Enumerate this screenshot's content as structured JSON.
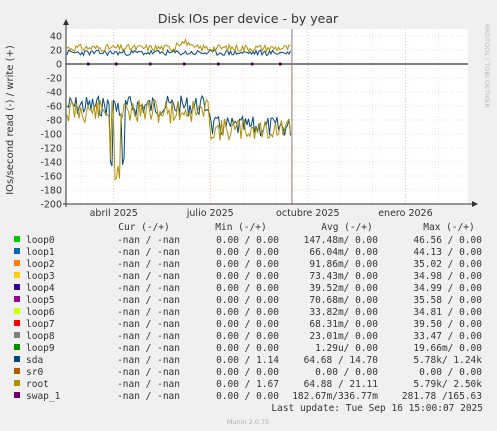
{
  "chart_data": {
    "type": "line",
    "title": "Disk IOs per device - by year",
    "ylabel": "IOs/second read (-) / write (+)",
    "ylim": [
      -200,
      50
    ],
    "yticks": [
      40,
      20,
      0,
      -20,
      -40,
      -60,
      -80,
      -100,
      -120,
      -140,
      -160,
      -180,
      -200
    ],
    "xlim": [
      "2025-02-15",
      "2026-03-01"
    ],
    "xticks": [
      {
        "label": "abril 2025",
        "date": "2025-04-01"
      },
      {
        "label": "julio 2025",
        "date": "2025-07-01"
      },
      {
        "label": "octubre 2025",
        "date": "2025-10-01"
      },
      {
        "label": "enero 2026",
        "date": "2026-01-01"
      }
    ],
    "now_marker": "2025-09-16",
    "grid": true,
    "series": [
      {
        "name": "loop0",
        "color": "#00cc00",
        "cur": "-nan /  -nan",
        "min": "0.00 /  0.00",
        "avg": "147.48m/  0.00",
        "max": "46.56 /  0.00"
      },
      {
        "name": "loop1",
        "color": "#0066b3",
        "cur": "-nan /  -nan",
        "min": "0.00 /  0.00",
        "avg": "66.04m/  0.00",
        "max": "44.13 /  0.00"
      },
      {
        "name": "loop2",
        "color": "#ff8000",
        "cur": "-nan /  -nan",
        "min": "0.00 /  0.00",
        "avg": "91.86m/  0.00",
        "max": "35.02 /  0.00"
      },
      {
        "name": "loop3",
        "color": "#ffcc00",
        "cur": "-nan /  -nan",
        "min": "0.00 /  0.00",
        "avg": "73.43m/  0.00",
        "max": "34.98 /  0.00"
      },
      {
        "name": "loop4",
        "color": "#330099",
        "cur": "-nan /  -nan",
        "min": "0.00 /  0.00",
        "avg": "39.52m/  0.00",
        "max": "34.99 /  0.00"
      },
      {
        "name": "loop5",
        "color": "#990099",
        "cur": "-nan /  -nan",
        "min": "0.00 /  0.00",
        "avg": "70.68m/  0.00",
        "max": "35.58 /  0.00"
      },
      {
        "name": "loop6",
        "color": "#ccff00",
        "cur": "-nan /  -nan",
        "min": "0.00 /  0.00",
        "avg": "33.82m/  0.00",
        "max": "34.81 /  0.00"
      },
      {
        "name": "loop7",
        "color": "#ff0000",
        "cur": "-nan /  -nan",
        "min": "0.00 /  0.00",
        "avg": "68.31m/  0.00",
        "max": "39.50 /  0.00"
      },
      {
        "name": "loop8",
        "color": "#808080",
        "cur": "-nan /  -nan",
        "min": "0.00 /  0.00",
        "avg": "23.01m/  0.00",
        "max": "33.47 /  0.00"
      },
      {
        "name": "loop9",
        "color": "#008f00",
        "cur": "-nan /  -nan",
        "min": "0.00 /  0.00",
        "avg": "1.29u/  0.00",
        "max": "19.66m/  0.00"
      },
      {
        "name": "sda",
        "color": "#00487d",
        "cur": "-nan /  -nan",
        "min": "0.00 /  1.14",
        "avg": "64.68 / 14.70",
        "max": "5.78k/  1.24k"
      },
      {
        "name": "sr0",
        "color": "#b35a00",
        "cur": "-nan /  -nan",
        "min": "0.00 /  0.00",
        "avg": "0.00 /  0.00",
        "max": "0.00 /  0.00"
      },
      {
        "name": "root",
        "color": "#b38f00",
        "cur": "-nan /  -nan",
        "min": "0.00 /  1.67",
        "avg": "64.88 / 21.11",
        "max": "5.79k/  2.50k"
      },
      {
        "name": "swap_1",
        "color": "#6b006b",
        "cur": "-nan /  -nan",
        "min": "0.00 /  0.00",
        "avg": "182.67m/336.77m",
        "max": "281.78 /165.63"
      }
    ]
  },
  "legend_headers": {
    "cur": "Cur (-/+)",
    "min": "Min (-/+)",
    "avg": "Avg (-/+)",
    "max": "Max (-/+)"
  },
  "last_update": "Last update: Tue Sep 16 15:00:07 2025",
  "side_label": "RRDTOOL / TOBI OETIKER",
  "footer": "Munin 2.0.75"
}
